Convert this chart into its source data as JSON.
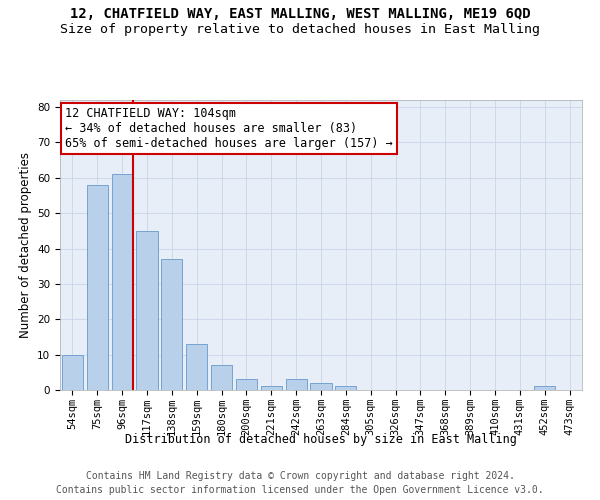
{
  "title_line1": "12, CHATFIELD WAY, EAST MALLING, WEST MALLING, ME19 6QD",
  "title_line2": "Size of property relative to detached houses in East Malling",
  "xlabel": "Distribution of detached houses by size in East Malling",
  "ylabel": "Number of detached properties",
  "bar_labels": [
    "54sqm",
    "75sqm",
    "96sqm",
    "117sqm",
    "138sqm",
    "159sqm",
    "180sqm",
    "200sqm",
    "221sqm",
    "242sqm",
    "263sqm",
    "284sqm",
    "305sqm",
    "326sqm",
    "347sqm",
    "368sqm",
    "389sqm",
    "410sqm",
    "431sqm",
    "452sqm",
    "473sqm"
  ],
  "bar_values": [
    10,
    58,
    61,
    45,
    37,
    13,
    7,
    3,
    1,
    3,
    2,
    1,
    0,
    0,
    0,
    0,
    0,
    0,
    0,
    1,
    0
  ],
  "bar_color": "#b8d0ea",
  "bar_edge_color": "#6699cc",
  "vline_x_index": 2,
  "vline_color": "#cc0000",
  "annotation_line1": "12 CHATFIELD WAY: 104sqm",
  "annotation_line2": "← 34% of detached houses are smaller (83)",
  "annotation_line3": "65% of semi-detached houses are larger (157) →",
  "annotation_box_color": "#ffffff",
  "annotation_box_edge_color": "#cc0000",
  "ylim": [
    0,
    82
  ],
  "yticks": [
    0,
    10,
    20,
    30,
    40,
    50,
    60,
    70,
    80
  ],
  "grid_color": "#c8d4e8",
  "background_color": "#e8eef8",
  "footer_line1": "Contains HM Land Registry data © Crown copyright and database right 2024.",
  "footer_line2": "Contains public sector information licensed under the Open Government Licence v3.0.",
  "title_fontsize": 10,
  "subtitle_fontsize": 9.5,
  "axis_label_fontsize": 8.5,
  "tick_fontsize": 7.5,
  "annotation_fontsize": 8.5,
  "footer_fontsize": 7
}
